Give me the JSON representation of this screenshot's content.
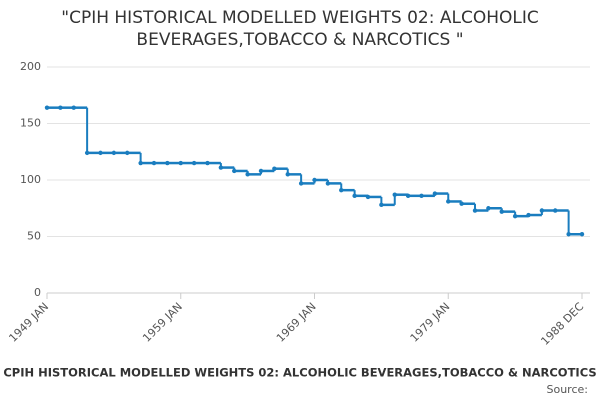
{
  "chart_data": {
    "type": "line",
    "title_lines": [
      "\"CPIH HISTORICAL MODELLED WEIGHTS 02: ALCOHOLIC",
      "BEVERAGES,TOBACCO & NARCOTICS \""
    ],
    "footer_title": "CPIH HISTORICAL MODELLED WEIGHTS 02: ALCOHOLIC BEVERAGES,TOBACCO & NARCOTICS",
    "source": "Source:",
    "x": [
      "1949 JAN",
      null,
      null,
      null,
      null,
      null,
      null,
      null,
      null,
      null,
      "1959 JAN",
      null,
      null,
      null,
      null,
      null,
      null,
      null,
      null,
      null,
      "1969 JAN",
      null,
      null,
      null,
      null,
      null,
      null,
      null,
      null,
      null,
      "1979 JAN",
      null,
      null,
      null,
      null,
      null,
      null,
      null,
      null,
      null,
      "1988 DEC"
    ],
    "series": [
      {
        "color": "#1a7dbf",
        "values": [
          164,
          164,
          164,
          124,
          124,
          124,
          124,
          115,
          115,
          115,
          115,
          115,
          115,
          111,
          108,
          105,
          108,
          110,
          105,
          97,
          100,
          97,
          91,
          86,
          85,
          78,
          87,
          86,
          86,
          88,
          81,
          79,
          73,
          75,
          72,
          68,
          69,
          73,
          73,
          52,
          52
        ]
      }
    ],
    "ylim": [
      0,
      200
    ],
    "yticks": [
      0,
      50,
      100,
      150,
      200
    ],
    "grid": true
  }
}
